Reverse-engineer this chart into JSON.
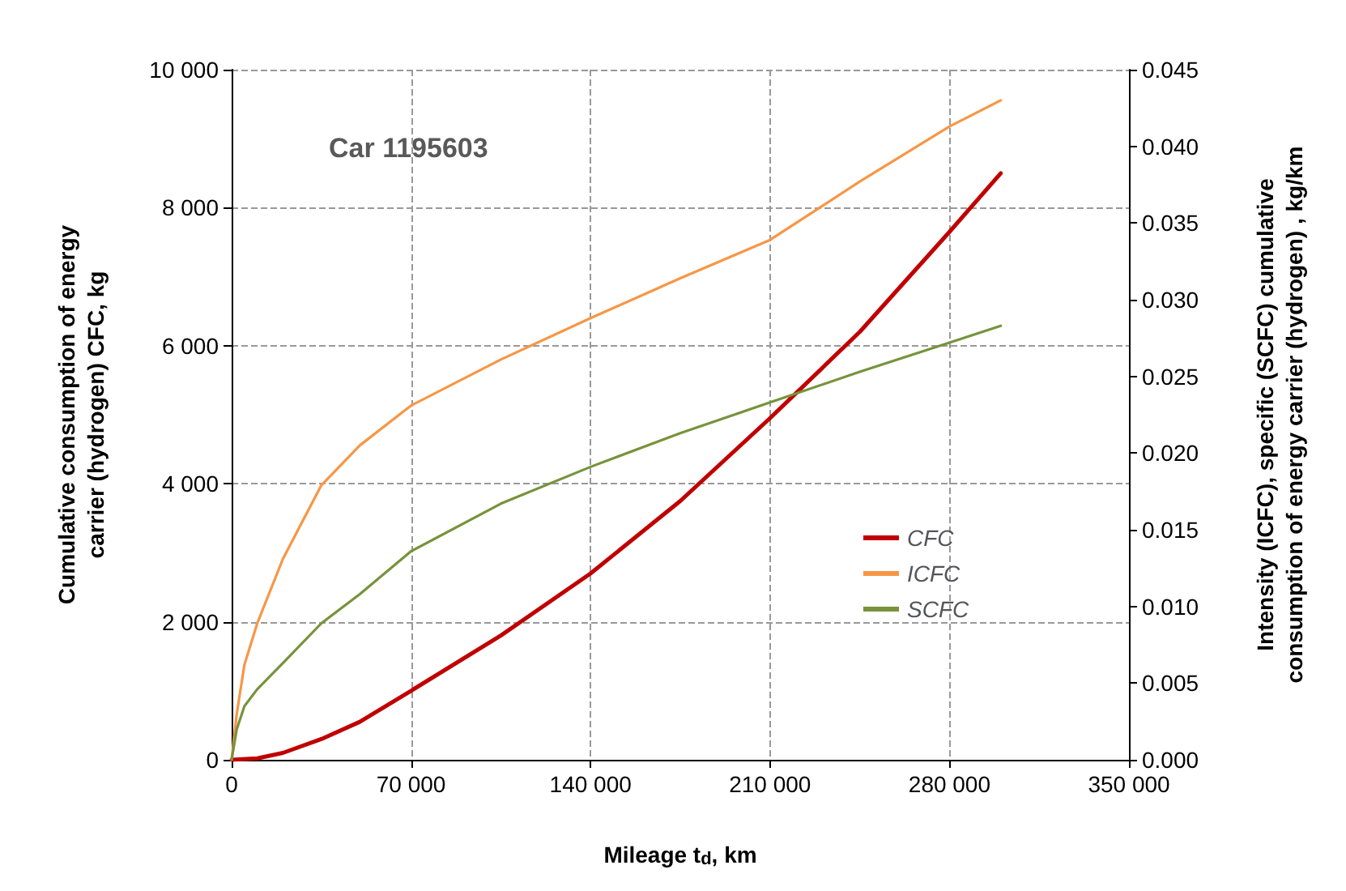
{
  "chart_data": {
    "type": "line",
    "xlabel": "Mileage t$_{d}$, km",
    "ylabel": "Cumulative consumption of energy carrier (hydrogen) CFC, kg",
    "y2label": "Intensity (ICFC), specific (SCFC) cumulative consumption of energy carrier (hydrogen) , kg/km",
    "annotations": [
      "Car 1195603"
    ],
    "xlim": [
      0,
      350000
    ],
    "xticks": [
      0,
      {
        "value": 70000,
        "label": "70 000"
      },
      {
        "value": 140000,
        "label": "140 000"
      },
      {
        "value": 210000,
        "label": "210 000"
      },
      {
        "value": 280000,
        "label": "280 000"
      },
      {
        "value": 350000,
        "label": "350 000"
      }
    ],
    "ylim": [
      0,
      10000
    ],
    "yticks": [
      0,
      {
        "value": 2000,
        "label": "2 000"
      },
      {
        "value": 4000,
        "label": "4 000"
      },
      {
        "value": 6000,
        "label": "6 000"
      },
      {
        "value": 8000,
        "label": "8 000"
      },
      {
        "value": 10000,
        "label": "10 000"
      }
    ],
    "y2lim": [
      0,
      0.045
    ],
    "y2ticks": [
      {
        "value": 0,
        "label": "0.000"
      },
      {
        "value": 0.005,
        "label": "0.005"
      },
      {
        "value": 0.01,
        "label": "0.010"
      },
      {
        "value": 0.015,
        "label": "0.015"
      },
      {
        "value": 0.02,
        "label": "0.020"
      },
      {
        "value": 0.025,
        "label": "0.025"
      },
      {
        "value": 0.03,
        "label": "0.030"
      },
      {
        "value": 0.035,
        "label": "0.035"
      },
      {
        "value": 0.04,
        "label": "0.040"
      },
      {
        "value": 0.045,
        "label": "0.045"
      }
    ],
    "grid": true,
    "legend": "right",
    "marker": "none",
    "line_style": "solid",
    "series": [
      {
        "name": "CFC",
        "color": "#c00000",
        "x": [
          0,
          10000,
          20000,
          35000,
          50000,
          70000,
          105000,
          140000,
          175000,
          210000,
          245000,
          280000,
          300000
        ],
        "values": [
          0,
          20,
          100,
          300,
          550,
          1000,
          1800,
          2700,
          3750,
          4950,
          6200,
          7650,
          8500
        ]
      },
      {
        "name": "ICFC",
        "color": "#f79646",
        "axis": "y2",
        "x": [
          0,
          2000,
          5000,
          10000,
          20000,
          35000,
          50000,
          70000,
          105000,
          140000,
          175000,
          210000,
          245000,
          280000,
          300000
        ],
        "values": [
          0,
          0.003,
          0.0062,
          0.0089,
          0.0131,
          0.0179,
          0.0205,
          0.0231,
          0.0261,
          0.0288,
          0.0314,
          0.0339,
          0.0377,
          0.0413,
          0.043
        ]
      },
      {
        "name": "SCFC",
        "color": "#77933c",
        "axis": "y2",
        "x": [
          0,
          2000,
          5000,
          10000,
          20000,
          35000,
          50000,
          70000,
          105000,
          140000,
          175000,
          210000,
          245000,
          280000,
          300000
        ],
        "values": [
          0,
          0.002,
          0.0035,
          0.0046,
          0.0063,
          0.0089,
          0.0108,
          0.0136,
          0.0167,
          0.0191,
          0.0213,
          0.0233,
          0.0253,
          0.0272,
          0.0283
        ]
      }
    ]
  }
}
